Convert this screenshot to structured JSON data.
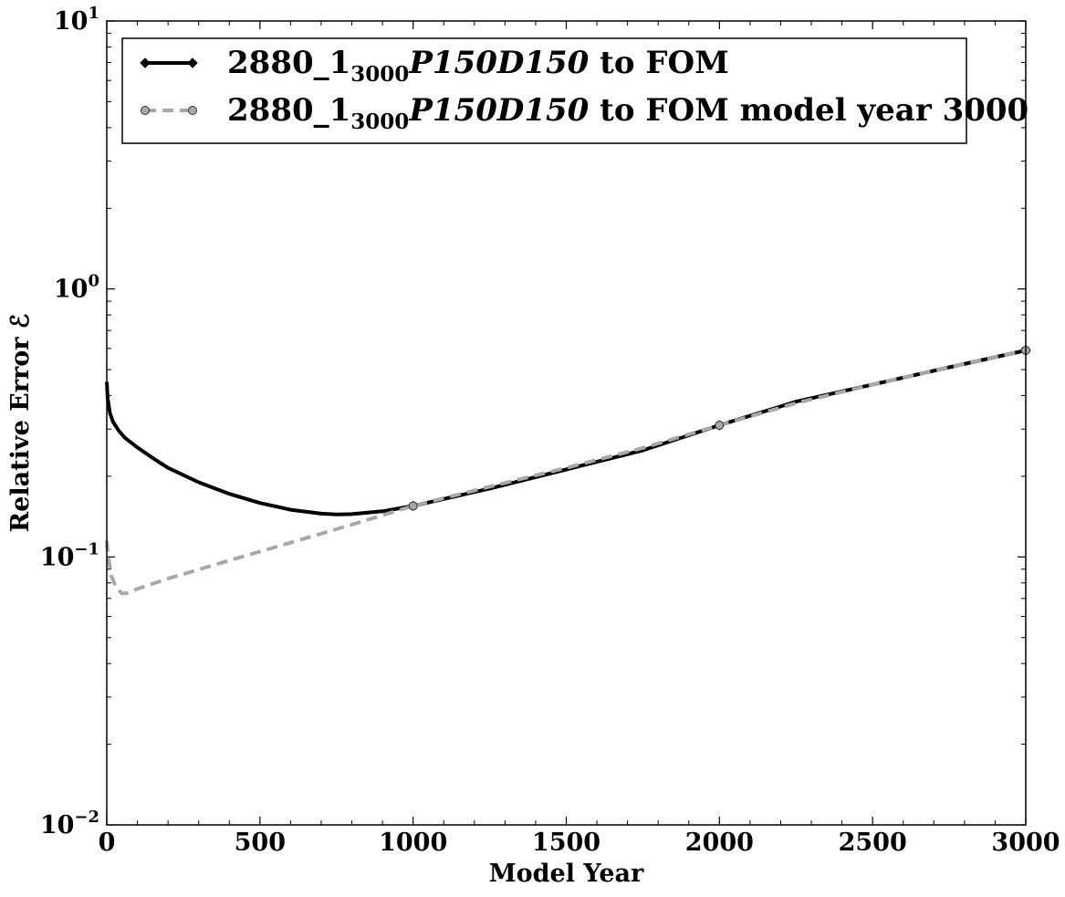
{
  "chart_data": {
    "type": "line",
    "title": "",
    "xlabel": "Model Year",
    "ylabel": "Relative Error ℰ",
    "xlim": [
      0,
      3000
    ],
    "ylim": [
      0.01,
      10
    ],
    "yscale": "log",
    "grid": false,
    "legend_position": "top-left",
    "x_ticks": [
      {
        "value": 0,
        "label": "0"
      },
      {
        "value": 500,
        "label": "500"
      },
      {
        "value": 1000,
        "label": "1000"
      },
      {
        "value": 1500,
        "label": "1500"
      },
      {
        "value": 2000,
        "label": "2000"
      },
      {
        "value": 2500,
        "label": "2500"
      },
      {
        "value": 3000,
        "label": "3000"
      }
    ],
    "y_ticks": [
      {
        "value": 0.01,
        "base": "10",
        "exp": "−2"
      },
      {
        "value": 0.1,
        "base": "10",
        "exp": "−1"
      },
      {
        "value": 1,
        "base": "10",
        "exp": "0"
      },
      {
        "value": 10,
        "base": "10",
        "exp": "1"
      }
    ],
    "series": [
      {
        "name": "2880_1",
        "name_sub": "3000",
        "name_math": "P150D150",
        "name_tail": " to FOM",
        "color": "#000000",
        "dash": "solid",
        "marker": "diamond",
        "x": [
          0,
          3,
          10,
          20,
          40,
          60,
          100,
          150,
          200,
          300,
          400,
          500,
          600,
          700,
          750,
          800,
          900,
          1000,
          1250,
          1500,
          1750,
          2000,
          2250,
          2500,
          2750,
          3000
        ],
        "y": [
          0.45,
          0.39,
          0.345,
          0.32,
          0.295,
          0.278,
          0.256,
          0.234,
          0.215,
          0.19,
          0.172,
          0.159,
          0.15,
          0.145,
          0.144,
          0.1445,
          0.148,
          0.155,
          0.18,
          0.212,
          0.25,
          0.31,
          0.38,
          0.44,
          0.51,
          0.59
        ],
        "marker_x": [
          1000,
          2000,
          3000
        ],
        "marker_y": [
          0.155,
          0.31,
          0.59
        ]
      },
      {
        "name": "2880_1",
        "name_sub": "3000",
        "name_math": "P150D150",
        "name_tail": " to FOM model year 3000",
        "color": "#a8a8a8",
        "dash": "dashed",
        "marker": "circle",
        "x": [
          0,
          3,
          8,
          15,
          30,
          50,
          70,
          100,
          200,
          400,
          600,
          800,
          1000,
          1250,
          1500,
          1750,
          2000,
          2250,
          2500,
          2750,
          3000
        ],
        "y": [
          0.115,
          0.105,
          0.095,
          0.085,
          0.077,
          0.073,
          0.0735,
          0.076,
          0.083,
          0.097,
          0.113,
          0.132,
          0.155,
          0.183,
          0.215,
          0.255,
          0.31,
          0.375,
          0.44,
          0.51,
          0.59
        ],
        "marker_x": [
          1000,
          2000,
          3000
        ],
        "marker_y": [
          0.155,
          0.31,
          0.59
        ]
      }
    ]
  }
}
